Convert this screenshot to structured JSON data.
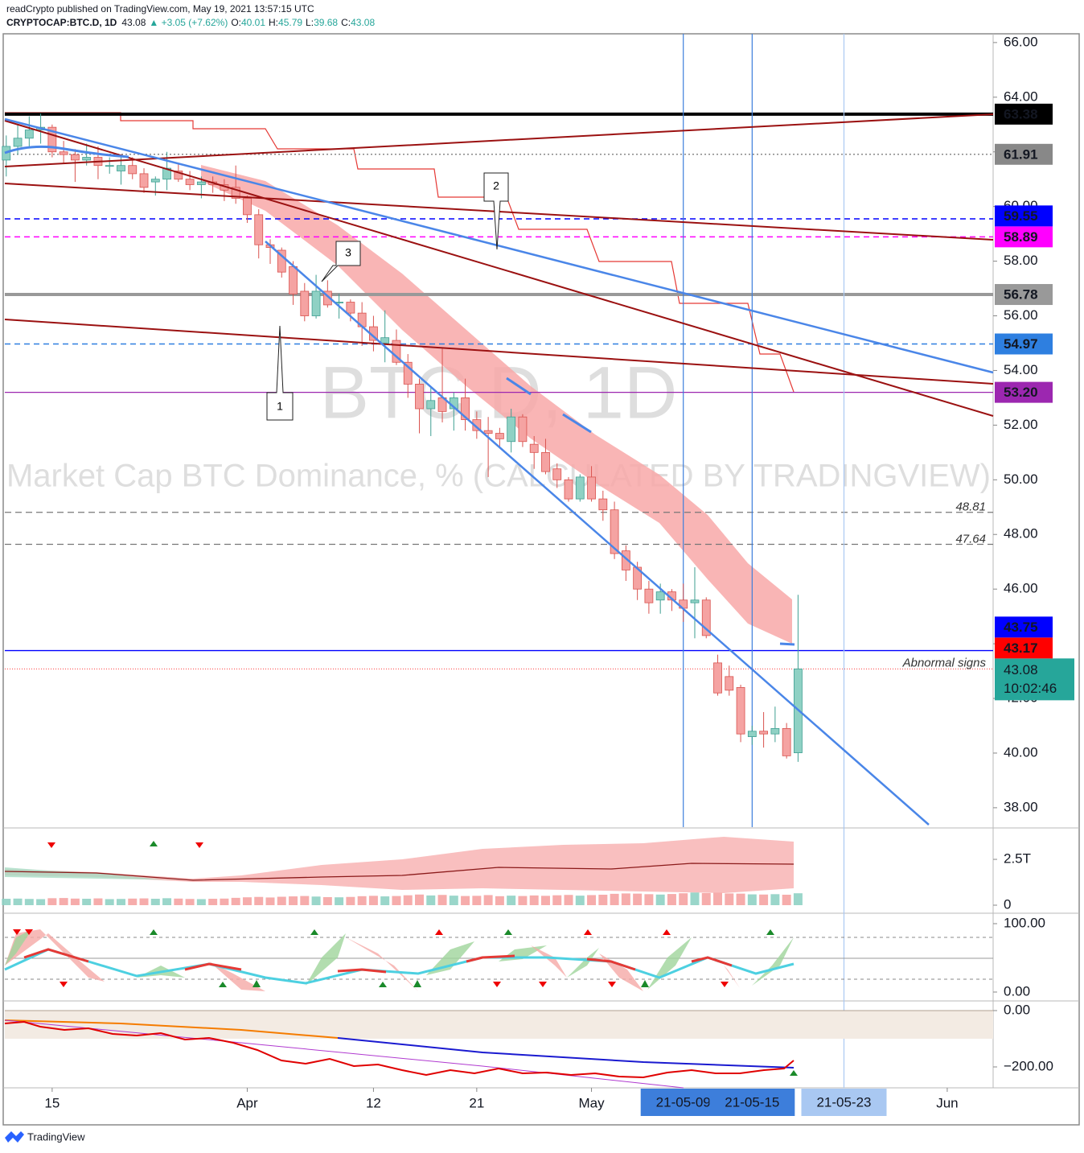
{
  "header": {
    "publisher": "readCrypto published on TradingView.com, May 19, 2021 13:57:15 UTC",
    "symbol": "CRYPTOCAP:BTC.D, 1D",
    "last": "43.08",
    "change": "▲ +3.05 (+7.62%)",
    "ohlc_labels": [
      "O:",
      "H:",
      "L:",
      "C:"
    ],
    "ohlc_values": [
      "40.01",
      "45.79",
      "39.68",
      "43.08"
    ]
  },
  "watermark": [
    "BTC.D, 1D",
    "Market Cap BTC Dominance, % (CALCULATED BY TRADINGVIEW)"
  ],
  "callouts": [
    "1",
    "2",
    "3"
  ],
  "footer": "TradingView",
  "chart_data": {
    "type": "candlestick",
    "x": [
      "2021-03-11",
      "2021-03-12",
      "2021-03-13",
      "2021-03-14",
      "2021-03-15",
      "2021-03-16",
      "2021-03-17",
      "2021-03-18",
      "2021-03-19",
      "2021-03-20",
      "2021-03-21",
      "2021-03-22",
      "2021-03-23",
      "2021-03-24",
      "2021-03-25",
      "2021-03-26",
      "2021-03-27",
      "2021-03-28",
      "2021-03-29",
      "2021-03-30",
      "2021-03-31",
      "2021-04-01",
      "2021-04-02",
      "2021-04-03",
      "2021-04-04",
      "2021-04-05",
      "2021-04-06",
      "2021-04-07",
      "2021-04-08",
      "2021-04-09",
      "2021-04-10",
      "2021-04-11",
      "2021-04-12",
      "2021-04-13",
      "2021-04-14",
      "2021-04-15",
      "2021-04-16",
      "2021-04-17",
      "2021-04-18",
      "2021-04-19",
      "2021-04-20",
      "2021-04-21",
      "2021-04-22",
      "2021-04-23",
      "2021-04-24",
      "2021-04-25",
      "2021-04-26",
      "2021-04-27",
      "2021-04-28",
      "2021-04-29",
      "2021-04-30",
      "2021-05-01",
      "2021-05-02",
      "2021-05-03",
      "2021-05-04",
      "2021-05-05",
      "2021-05-06",
      "2021-05-07",
      "2021-05-08",
      "2021-05-09",
      "2021-05-10",
      "2021-05-11",
      "2021-05-12",
      "2021-05-13",
      "2021-05-14",
      "2021-05-15",
      "2021-05-16",
      "2021-05-17",
      "2021-05-18",
      "2021-05-19"
    ],
    "open": [
      61.7,
      62.2,
      62.5,
      62.8,
      62.9,
      62.0,
      61.9,
      61.7,
      61.8,
      61.5,
      61.3,
      61.5,
      61.2,
      60.9,
      61.0,
      61.3,
      61.0,
      60.8,
      60.9,
      60.8,
      60.7,
      60.3,
      59.7,
      58.6,
      58.4,
      57.8,
      56.9,
      56.0,
      56.9,
      56.5,
      56.5,
      56.1,
      55.6,
      55.0,
      55.1,
      54.3,
      53.5,
      52.6,
      53.0,
      52.6,
      53.0,
      52.2,
      51.8,
      51.7,
      51.4,
      52.3,
      51.3,
      51.0,
      50.4,
      50.0,
      49.3,
      50.1,
      49.3,
      48.9,
      47.4,
      46.8,
      46.0,
      45.6,
      45.9,
      45.6,
      45.5,
      45.6,
      43.3,
      42.8,
      42.4,
      40.6,
      40.8,
      40.7,
      40.9,
      40.01
    ],
    "high": [
      62.6,
      63.0,
      63.3,
      63.4,
      63.0,
      62.4,
      62.1,
      62.3,
      62.2,
      61.8,
      61.8,
      61.8,
      61.4,
      61.1,
      62.0,
      61.6,
      61.3,
      61.1,
      61.1,
      61.0,
      61.5,
      60.4,
      59.9,
      58.8,
      58.5,
      58.0,
      57.2,
      57.5,
      57.3,
      56.8,
      56.6,
      56.5,
      56.0,
      56.2,
      55.5,
      54.6,
      53.7,
      53.4,
      54.8,
      53.2,
      53.7,
      52.5,
      52.3,
      51.9,
      52.6,
      52.4,
      51.6,
      51.5,
      50.6,
      50.1,
      50.2,
      50.5,
      49.6,
      49.2,
      47.6,
      47.0,
      46.3,
      46.2,
      46.0,
      46.2,
      46.8,
      45.7,
      43.6,
      43.2,
      42.5,
      41.0,
      41.5,
      41.7,
      41.1,
      45.79
    ],
    "low": [
      61.1,
      61.9,
      62.2,
      62.3,
      61.8,
      61.6,
      60.9,
      61.5,
      61.0,
      61.2,
      60.8,
      61.0,
      60.5,
      60.4,
      60.6,
      60.9,
      60.6,
      60.3,
      60.5,
      60.2,
      60.1,
      59.4,
      58.1,
      57.9,
      57.4,
      56.4,
      55.8,
      55.9,
      56.3,
      55.9,
      55.8,
      54.9,
      54.7,
      54.3,
      54.2,
      53.0,
      51.7,
      51.6,
      52.1,
      51.8,
      51.8,
      51.5,
      50.1,
      51.2,
      51.0,
      51.2,
      50.4,
      50.2,
      49.7,
      49.2,
      49.2,
      49.2,
      48.5,
      47.1,
      46.3,
      45.6,
      45.1,
      45.1,
      45.2,
      44.8,
      44.2,
      44.2,
      42.1,
      42.1,
      40.4,
      40.3,
      40.2,
      40.4,
      39.8,
      39.68
    ],
    "close": [
      62.2,
      62.5,
      62.8,
      62.9,
      62.0,
      61.9,
      61.7,
      61.8,
      61.5,
      61.5,
      61.5,
      61.2,
      60.7,
      61.0,
      61.4,
      61.0,
      60.8,
      60.9,
      60.8,
      60.6,
      60.3,
      59.7,
      58.6,
      58.5,
      57.6,
      56.8,
      56.0,
      56.9,
      56.4,
      56.5,
      56.1,
      55.6,
      55.1,
      55.2,
      54.3,
      53.5,
      52.6,
      52.9,
      52.5,
      53.0,
      52.2,
      51.8,
      51.7,
      51.5,
      52.3,
      51.4,
      51.0,
      50.3,
      50.0,
      49.3,
      50.1,
      49.3,
      48.9,
      47.3,
      46.7,
      46.0,
      45.5,
      45.9,
      45.6,
      45.3,
      45.6,
      44.3,
      42.2,
      42.3,
      40.7,
      40.8,
      40.7,
      40.9,
      39.9,
      43.08
    ],
    "colors": {
      "up": "#8fd1c4",
      "up_border": "#3f9f92",
      "down": "#f5a3a2",
      "down_border": "#d9534f"
    },
    "xlim": [
      "2021-03-10T21:00Z",
      "2021-06-05T00:00Z"
    ],
    "xticks": [
      {
        "value": "2021-03-15",
        "label": "15"
      },
      {
        "value": "2021-04-01",
        "label": "Apr"
      },
      {
        "value": "2021-04-12",
        "label": "12"
      },
      {
        "value": "2021-04-21",
        "label": "21"
      },
      {
        "value": "2021-05-01",
        "label": "May"
      },
      {
        "value": "2021-06-01",
        "label": "Jun"
      }
    ],
    "x_markers": [
      {
        "value": "2021-05-09",
        "label": "21-05-09",
        "color": "#3d7edb",
        "text_color": "#ffffff"
      },
      {
        "value": "2021-05-15",
        "label": "21-05-15",
        "color": "#3d7edb",
        "text_color": "#ffffff"
      },
      {
        "value": "2021-05-23",
        "label": "21-05-23",
        "color": "#a9c8f2",
        "text_color": "#1e2a40"
      }
    ],
    "ylim": [
      37.29,
      66.32
    ],
    "yticks": [
      {
        "value": 38,
        "label": "38.00"
      },
      {
        "value": 40,
        "label": "40.00"
      },
      {
        "value": 42,
        "label": "42.00"
      },
      {
        "value": 44,
        "label": "44.00"
      },
      {
        "value": 46,
        "label": "46.00"
      },
      {
        "value": 48,
        "label": "48.00"
      },
      {
        "value": 50,
        "label": "50.00"
      },
      {
        "value": 52,
        "label": "52.00"
      },
      {
        "value": 54,
        "label": "54.00"
      },
      {
        "value": 56,
        "label": "56.00"
      },
      {
        "value": 58,
        "label": "58.00"
      },
      {
        "value": 60,
        "label": "60.00"
      },
      {
        "value": 62,
        "label": "62.00"
      },
      {
        "value": 64,
        "label": "64.00"
      },
      {
        "value": 66,
        "label": "66.00"
      }
    ],
    "levels": [
      {
        "value": 63.38,
        "color": "#000000",
        "text_color": "#ffffff",
        "style": "thick"
      },
      {
        "value": 61.91,
        "color": "#888888",
        "text_color": "#000000",
        "style": "dotted"
      },
      {
        "value": 59.55,
        "color": "#0000ff",
        "text_color": "#ffffff",
        "style": "dashed"
      },
      {
        "value": 58.89,
        "color": "#ff00ff",
        "text_color": "#ffffff",
        "style": "dashed"
      },
      {
        "value": 56.78,
        "color": "#999999",
        "text_color": "#000000",
        "style": "thick"
      },
      {
        "value": 54.97,
        "color": "#2e7fe0",
        "text_color": "#ffffff",
        "style": "dashed"
      },
      {
        "value": 53.2,
        "label": "53.20",
        "color": "#9c27b0",
        "text_color": "#ffffff",
        "style": "solid"
      },
      {
        "value": 43.75,
        "color": "#0000ff",
        "text_color": "#ffffff",
        "style": "solid"
      },
      {
        "value": 43.17,
        "color": "#ff0000",
        "text_color": "#ffffff",
        "style": "none"
      }
    ],
    "marked_levels": [
      48.81,
      47.64
    ],
    "last_price": {
      "value": 43.08,
      "countdown": "10:02:46",
      "note": "Abnormal signs",
      "color": "#26a69a",
      "line_color": "#ff3b3b"
    },
    "volume": {
      "ylim": [
        -220000000000.0,
        4170000000000.0
      ],
      "yticks": [
        0,
        {
          "value": 2500000000000.0,
          "label": "2.5T"
        }
      ],
      "values": [
        350000000000.0,
        360000000000.0,
        340000000000.0,
        330000000000.0,
        380000000000.0,
        390000000000.0,
        360000000000.0,
        350000000000.0,
        370000000000.0,
        330000000000.0,
        340000000000.0,
        360000000000.0,
        370000000000.0,
        350000000000.0,
        380000000000.0,
        360000000000.0,
        340000000000.0,
        330000000000.0,
        350000000000.0,
        360000000000.0,
        400000000000.0,
        430000000000.0,
        450000000000.0,
        420000000000.0,
        460000000000.0,
        480000000000.0,
        500000000000.0,
        470000000000.0,
        440000000000.0,
        430000000000.0,
        450000000000.0,
        490000000000.0,
        510000000000.0,
        480000000000.0,
        500000000000.0,
        540000000000.0,
        580000000000.0,
        530000000000.0,
        560000000000.0,
        520000000000.0,
        500000000000.0,
        510000000000.0,
        550000000000.0,
        490000000000.0,
        520000000000.0,
        500000000000.0,
        530000000000.0,
        510000000000.0,
        540000000000.0,
        560000000000.0,
        520000000000.0,
        550000000000.0,
        570000000000.0,
        620000000000.0,
        640000000000.0,
        630000000000.0,
        600000000000.0,
        580000000000.0,
        610000000000.0,
        650000000000.0,
        690000000000.0,
        660000000000.0,
        680000000000.0,
        640000000000.0,
        630000000000.0,
        590000000000.0,
        580000000000.0,
        600000000000.0,
        570000000000.0,
        650000000000.0
      ]
    },
    "oscillator": {
      "ylim": [
        -11.8,
        112.9
      ],
      "yticks": [
        {
          "value": 0,
          "label": "0.00"
        },
        {
          "value": 100,
          "label": "100.00"
        }
      ]
    },
    "momentum": {
      "ylim": [
        -274.3,
        31.4
      ],
      "yticks": [
        {
          "value": 0,
          "label": "0.00"
        },
        {
          "value": -200,
          "label": "−200.00"
        }
      ]
    }
  }
}
